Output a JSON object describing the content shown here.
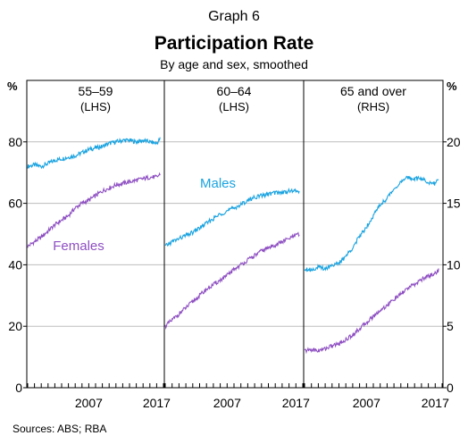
{
  "graph_label": "Graph 6",
  "title": "Participation Rate",
  "subtitle": "By age and sex, smoothed",
  "source": "Sources:   ABS; RBA",
  "left_axis_unit": "%",
  "right_axis_unit": "%",
  "colors": {
    "males": "#1aa3e0",
    "females": "#8e4fc2",
    "grid": "#bdbdbd",
    "axis": "#000000"
  },
  "chart_data": {
    "type": "line",
    "left_axis": {
      "ylim": [
        0,
        100
      ],
      "ticks": [
        0,
        20,
        40,
        60,
        80
      ]
    },
    "right_axis": {
      "ylim": [
        0,
        25
      ],
      "ticks": [
        0,
        5,
        10,
        15,
        20
      ]
    },
    "grid": true,
    "panels": [
      {
        "label": "55–59",
        "axis_note": "(LHS)",
        "axis": "left",
        "xlim": [
          1998,
          2018
        ],
        "x_ticks": [
          2007,
          2017
        ],
        "series": [
          {
            "key": "males",
            "x": [
              1998,
              1999,
              2000,
              2001,
              2002,
              2003,
              2004,
              2005,
              2006,
              2007,
              2008,
              2009,
              2010,
              2011,
              2012,
              2013,
              2014,
              2015,
              2016,
              2017,
              2017.5
            ],
            "y": [
              72,
              72.5,
              72,
              73,
              74,
              74.5,
              75,
              75.5,
              76.5,
              77.5,
              78,
              78.5,
              79.5,
              80,
              80.5,
              80.5,
              80,
              80.5,
              80,
              79.5,
              81
            ]
          },
          {
            "key": "females",
            "name": "Females",
            "x": [
              1998,
              1999,
              2000,
              2001,
              2002,
              2003,
              2004,
              2005,
              2006,
              2007,
              2008,
              2009,
              2010,
              2011,
              2012,
              2013,
              2014,
              2015,
              2016,
              2017,
              2017.5
            ],
            "y": [
              46,
              47.5,
              49,
              51,
              53,
              54.5,
              56,
              58.5,
              60,
              61,
              62.5,
              64,
              65,
              66,
              66.5,
              67,
              67.5,
              68,
              68.5,
              68.5,
              69.5
            ]
          }
        ]
      },
      {
        "label": "60–64",
        "axis_note": "(LHS)",
        "axis": "left",
        "xlim": [
          1998,
          2018
        ],
        "x_ticks": [
          2007,
          2017
        ],
        "series": [
          {
            "key": "males",
            "name": "Males",
            "x": [
              1998,
              1999,
              2000,
              2001,
              2002,
              2003,
              2004,
              2005,
              2006,
              2007,
              2008,
              2009,
              2010,
              2011,
              2012,
              2013,
              2014,
              2015,
              2016,
              2017,
              2017.5
            ],
            "y": [
              46,
              47.5,
              48.5,
              49.5,
              50.5,
              52,
              53.5,
              55,
              56.5,
              57.5,
              58.5,
              59.5,
              61,
              62,
              62.5,
              63,
              63.5,
              63.5,
              64,
              64,
              64
            ]
          },
          {
            "key": "females",
            "x": [
              1998,
              1999,
              2000,
              2001,
              2002,
              2003,
              2004,
              2005,
              2006,
              2007,
              2008,
              2009,
              2010,
              2011,
              2012,
              2013,
              2014,
              2015,
              2016,
              2017,
              2017.5
            ],
            "y": [
              20,
              22,
              24,
              26,
              28,
              30,
              32,
              33.5,
              35,
              36.5,
              38.5,
              40,
              41.5,
              43,
              44.5,
              45.5,
              46.5,
              47.5,
              48.5,
              49.5,
              50
            ]
          }
        ]
      },
      {
        "label": "65 and over",
        "axis_note": "(RHS)",
        "axis": "right",
        "xlim": [
          1998,
          2018
        ],
        "x_ticks": [
          2007,
          2017
        ],
        "series": [
          {
            "key": "males",
            "x": [
              1998,
              1999,
              2000,
              2001,
              2002,
              2003,
              2004,
              2005,
              2006,
              2007,
              2008,
              2009,
              2010,
              2011,
              2012,
              2013,
              2014,
              2015,
              2016,
              2017,
              2017.5
            ],
            "y": [
              9.7,
              9.6,
              9.8,
              9.7,
              10.0,
              10.1,
              10.7,
              11.4,
              12.3,
              13.1,
              14.0,
              14.9,
              15.4,
              16.2,
              16.7,
              17.1,
              17.0,
              17.0,
              16.7,
              16.6,
              17.0
            ]
          },
          {
            "key": "females",
            "x": [
              1998,
              1999,
              2000,
              2001,
              2002,
              2003,
              2004,
              2005,
              2006,
              2007,
              2008,
              2009,
              2010,
              2011,
              2012,
              2013,
              2014,
              2015,
              2016,
              2017,
              2017.5
            ],
            "y": [
              3.0,
              3.1,
              3.0,
              3.2,
              3.4,
              3.6,
              3.9,
              4.3,
              4.8,
              5.3,
              5.8,
              6.3,
              6.7,
              7.2,
              7.6,
              8.1,
              8.4,
              8.8,
              9.1,
              9.3,
              9.6
            ]
          }
        ]
      }
    ]
  }
}
